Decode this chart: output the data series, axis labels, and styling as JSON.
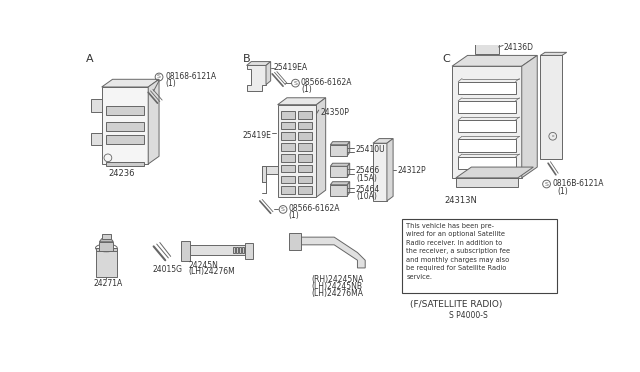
{
  "bg_color": "#ffffff",
  "line_color": "#666666",
  "text_color": "#333333",
  "fig_width": 6.4,
  "fig_height": 3.72,
  "dpi": 100,
  "notice_text": "This vehicle has been pre-\nwired for an optional Satellite\nRadio receiver. In addition to\nthe receiver, a subscription fee\nand monthly charges may also\nbe required for Satellite Radio\nservice.",
  "footer": "S P4000-S",
  "satellite_label": "(F/SATELLITE RADIO)"
}
